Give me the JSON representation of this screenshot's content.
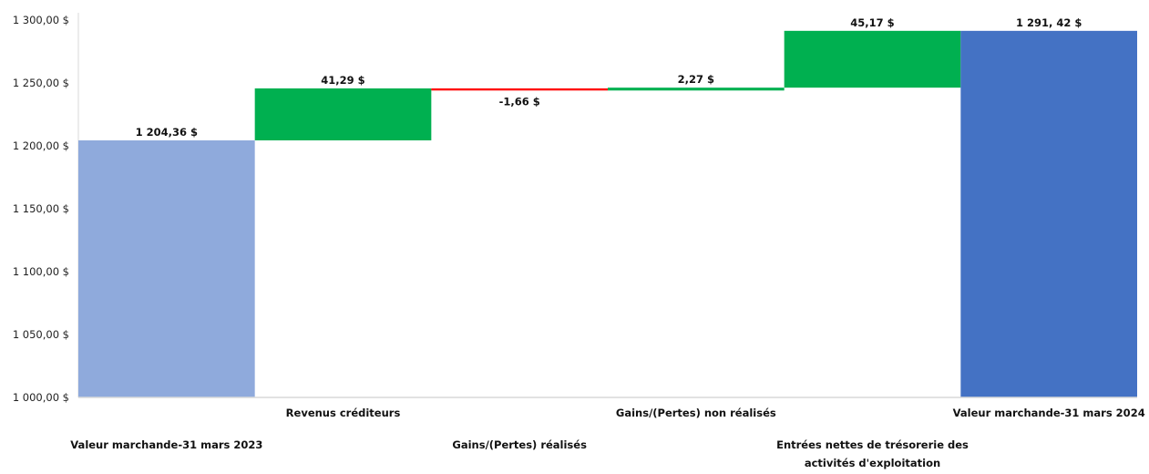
{
  "chart_data": {
    "type": "waterfall",
    "categories": [
      "Valeur marchande-31 mars 2023",
      "Revenus créditeurs",
      "Gains/(Pertes) réalisés",
      "Gains/(Pertes) non réalisés",
      "Entrées nettes de trésorerie des activités d'exploitation",
      "Valeur marchande-31 mars 2024"
    ],
    "category_lines": [
      [
        "Valeur marchande-31 mars 2023"
      ],
      [
        "Revenus créditeurs"
      ],
      [
        "Gains/(Pertes) réalisés"
      ],
      [
        "Gains/(Pertes) non réalisés"
      ],
      [
        "Entrées nettes de trésorerie des",
        "activités d'exploitation"
      ],
      [
        "Valeur marchande-31 mars 2024"
      ]
    ],
    "steps": [
      {
        "kind": "total",
        "value": 1204.36,
        "label": "1 204,36 $"
      },
      {
        "kind": "increase",
        "value": 41.29,
        "label": "41,29 $"
      },
      {
        "kind": "decrease",
        "value": -1.66,
        "label": "-1,66 $"
      },
      {
        "kind": "increase",
        "value": 2.27,
        "label": "2,27 $"
      },
      {
        "kind": "increase",
        "value": 45.17,
        "label": "45,17 $"
      },
      {
        "kind": "total",
        "value": 1291.42,
        "label": "1 291, 42 $"
      }
    ],
    "ylim": [
      1000,
      1300
    ],
    "yticks": [
      1000,
      1050,
      1100,
      1150,
      1200,
      1250,
      1300
    ],
    "ytick_labels": [
      "1 000,00 $",
      "1 050,00 $",
      "1 100,00 $",
      "1 150,00 $",
      "1 200,00 $",
      "1 250,00 $",
      "1 300,00 $"
    ],
    "colors": {
      "start_total": "#8faadc",
      "end_total": "#4472c4",
      "increase": "#00b050",
      "decrease": "#ff0000",
      "axis": "#d9d9d9"
    },
    "grid": false,
    "legend": "none"
  }
}
